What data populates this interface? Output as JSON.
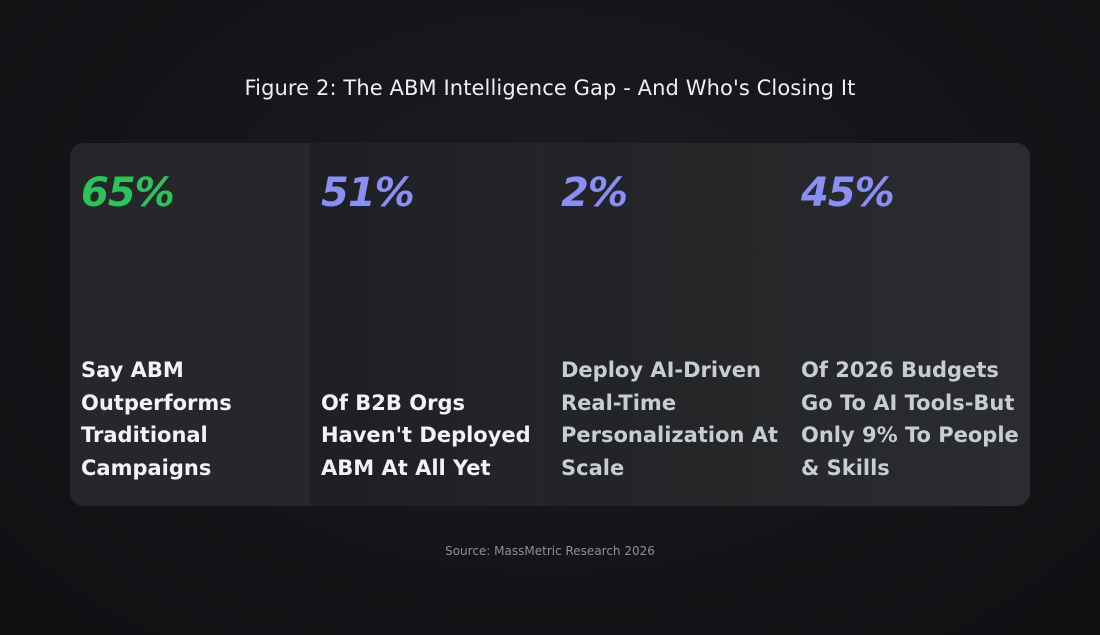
{
  "title": "Figure 2: The ABM Intelligence Gap - And Who's Closing It",
  "source": "Source: MassMetric Research 2026",
  "colors": {
    "green": "#2ec25a",
    "purple": "#8a8ff5",
    "background": "#141518"
  },
  "chart_data": {
    "type": "table",
    "title": "Figure 2: The ABM Intelligence Gap - And Who's Closing It",
    "unit": "%",
    "stats": [
      {
        "value": "65%",
        "number": 65,
        "label": "Say ABM Outperforms Traditional Campaigns",
        "color": "#2ec25a"
      },
      {
        "value": "51%",
        "number": 51,
        "label": "Of B2B Orgs Haven't Deployed ABM At All Yet",
        "color": "#8a8ff5"
      },
      {
        "value": "2%",
        "number": 2,
        "label": "Deploy AI-Driven Real-Time Personalization At Scale",
        "color": "#8a8ff5"
      },
      {
        "value": "45%",
        "number": 45,
        "label": "Of 2026 Budgets Go To AI Tools-But Only 9% To People & Skills",
        "color": "#8a8ff5"
      }
    ]
  }
}
